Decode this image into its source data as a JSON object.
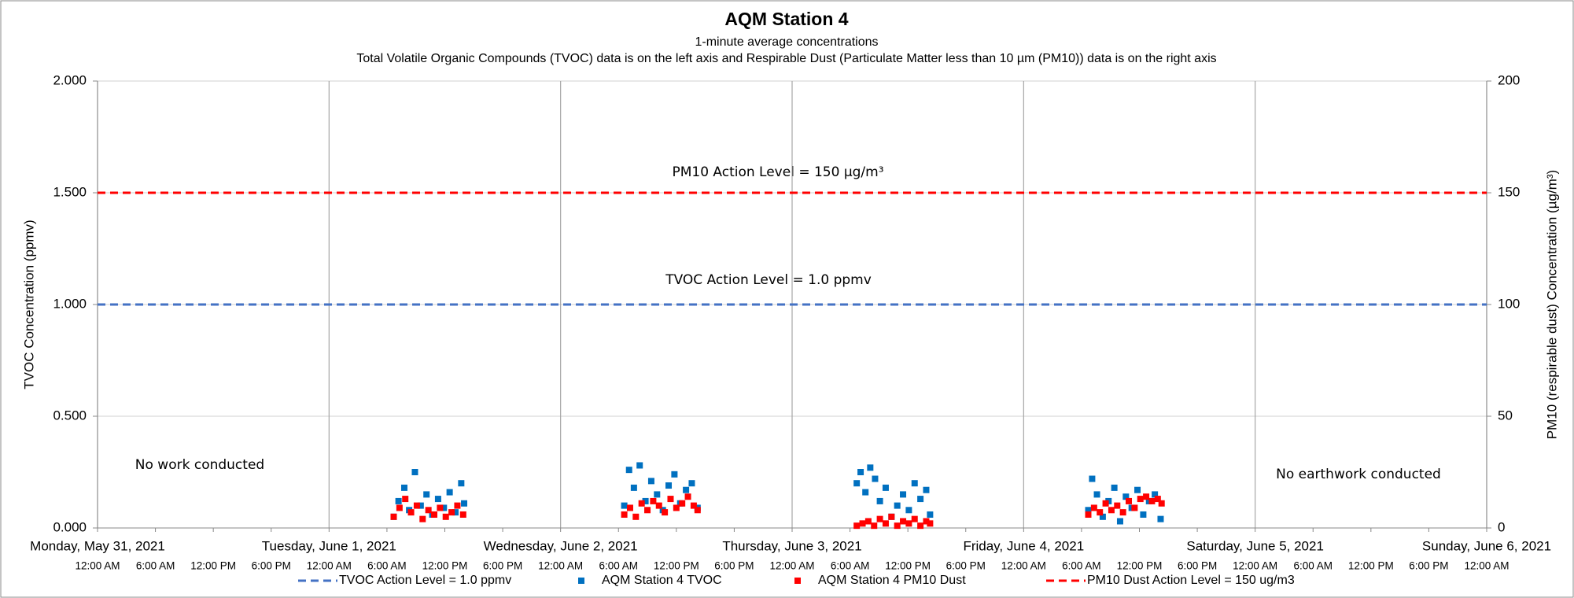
{
  "chart_data": {
    "type": "scatter",
    "title": "AQM Station 4",
    "subtitle": "1-minute average concentrations",
    "subtitle2": "Total Volatile Organic Compounds (TVOC) data is on the left axis and Respirable Dust (Particulate Matter less than 10 µm (PM10)) data is on the right axis",
    "ylabel": "TVOC Concentration (ppmv)",
    "y2label": "PM10 (respirable dust) Concentration (µg/m³)",
    "xlim": [
      0,
      144
    ],
    "xticks": [
      {
        "value": 0,
        "label": "12:00 AM"
      },
      {
        "value": 6,
        "label": "6:00 AM"
      },
      {
        "value": 12,
        "label": "12:00 PM"
      },
      {
        "value": 18,
        "label": "6:00 PM"
      },
      {
        "value": 24,
        "label": "12:00 AM"
      },
      {
        "value": 30,
        "label": "6:00 AM"
      },
      {
        "value": 36,
        "label": "12:00 PM"
      },
      {
        "value": 42,
        "label": "6:00 PM"
      },
      {
        "value": 48,
        "label": "12:00 AM"
      },
      {
        "value": 54,
        "label": "6:00 AM"
      },
      {
        "value": 60,
        "label": "12:00 PM"
      },
      {
        "value": 66,
        "label": "6:00 PM"
      },
      {
        "value": 72,
        "label": "12:00 AM"
      },
      {
        "value": 78,
        "label": "6:00 AM"
      },
      {
        "value": 84,
        "label": "12:00 PM"
      },
      {
        "value": 90,
        "label": "6:00 PM"
      },
      {
        "value": 96,
        "label": "12:00 AM"
      },
      {
        "value": 102,
        "label": "6:00 AM"
      },
      {
        "value": 108,
        "label": "12:00 PM"
      },
      {
        "value": 114,
        "label": "6:00 PM"
      },
      {
        "value": 120,
        "label": "12:00 AM"
      },
      {
        "value": 126,
        "label": "6:00 AM"
      },
      {
        "value": 132,
        "label": "12:00 PM"
      },
      {
        "value": 138,
        "label": "6:00 PM"
      },
      {
        "value": 144,
        "label": "12:00 AM"
      }
    ],
    "xticks_major": [
      {
        "value": 0,
        "label": "Monday, May 31, 2021"
      },
      {
        "value": 24,
        "label": "Tuesday, June 1, 2021"
      },
      {
        "value": 48,
        "label": "Wednesday, June 2, 2021"
      },
      {
        "value": 72,
        "label": "Thursday, June 3, 2021"
      },
      {
        "value": 96,
        "label": "Friday, June 4, 2021"
      },
      {
        "value": 120,
        "label": "Saturday, June 5, 2021"
      },
      {
        "value": 144,
        "label": "Sunday, June 6, 2021"
      }
    ],
    "ylim": [
      0,
      2
    ],
    "yticks": [
      {
        "value": 0,
        "label": "0.000"
      },
      {
        "value": 0.5,
        "label": "0.500"
      },
      {
        "value": 1,
        "label": "1.000"
      },
      {
        "value": 1.5,
        "label": "1.500"
      },
      {
        "value": 2,
        "label": "2.000"
      }
    ],
    "y2lim": [
      0,
      200
    ],
    "y2ticks": [
      0,
      50,
      100,
      150,
      200
    ],
    "grid": true,
    "legend": "bottom",
    "series": [
      {
        "name": "TVOC Action Level = 1.0 ppmv",
        "type": "hline",
        "color": "#4472c4",
        "value": 1.0
      },
      {
        "name": "AQM Station 4 TVOC",
        "type": "scatter",
        "color": "#0070c0",
        "x": [
          30.7,
          31.2,
          31.8,
          32.3,
          32.9,
          33.5,
          34.1,
          34.7,
          35.3,
          35.9,
          36.5,
          37.1,
          37.7,
          38.0,
          54.6,
          55.1,
          55.6,
          56.2,
          56.8,
          57.4,
          58.0,
          58.6,
          59.2,
          59.8,
          60.4,
          61.0,
          61.6,
          62.2,
          78.7,
          79.1,
          79.6,
          80.1,
          80.6,
          81.1,
          81.7,
          82.3,
          82.9,
          83.5,
          84.1,
          84.7,
          85.3,
          85.9,
          86.3,
          102.7,
          103.1,
          103.6,
          104.2,
          104.8,
          105.4,
          106.0,
          106.6,
          107.2,
          107.8,
          108.4,
          109.0,
          109.6,
          110.2
        ],
        "values": [
          0.05,
          0.12,
          0.18,
          0.08,
          0.25,
          0.1,
          0.15,
          0.06,
          0.13,
          0.09,
          0.16,
          0.07,
          0.2,
          0.11,
          0.1,
          0.26,
          0.18,
          0.28,
          0.12,
          0.21,
          0.15,
          0.08,
          0.19,
          0.24,
          0.11,
          0.17,
          0.2,
          0.09,
          0.2,
          0.25,
          0.16,
          0.27,
          0.22,
          0.12,
          0.18,
          0.05,
          0.1,
          0.15,
          0.08,
          0.2,
          0.13,
          0.17,
          0.06,
          0.08,
          0.22,
          0.15,
          0.05,
          0.12,
          0.18,
          0.03,
          0.14,
          0.09,
          0.17,
          0.06,
          0.12,
          0.15,
          0.04
        ]
      },
      {
        "name": "AQM Station 4 PM10 Dust",
        "type": "scatter",
        "color": "#ff0000",
        "axis": "y2",
        "x": [
          30.7,
          31.3,
          31.9,
          32.5,
          33.1,
          33.7,
          34.3,
          34.9,
          35.5,
          36.1,
          36.7,
          37.3,
          37.9,
          54.6,
          55.2,
          55.8,
          56.4,
          57.0,
          57.6,
          58.2,
          58.8,
          59.4,
          60.0,
          60.6,
          61.2,
          61.8,
          62.2,
          78.7,
          79.3,
          79.9,
          80.5,
          81.1,
          81.7,
          82.3,
          82.9,
          83.5,
          84.1,
          84.7,
          85.3,
          85.9,
          86.3,
          102.7,
          103.3,
          103.9,
          104.5,
          105.1,
          105.7,
          106.3,
          106.9,
          107.5,
          108.1,
          108.7,
          109.3,
          109.9,
          110.3
        ],
        "values": [
          5,
          9,
          13,
          7,
          10,
          4,
          8,
          6,
          9,
          5,
          7,
          10,
          6,
          6,
          9,
          5,
          11,
          8,
          12,
          10,
          7,
          13,
          9,
          11,
          14,
          10,
          8,
          1,
          2,
          3,
          1,
          4,
          2,
          5,
          1,
          3,
          2,
          4,
          1,
          3,
          2,
          6,
          9,
          7,
          11,
          8,
          10,
          7,
          12,
          9,
          13,
          14,
          12,
          13,
          11
        ]
      },
      {
        "name": "PM10 Dust Action Level = 150 ug/m3",
        "type": "hline",
        "color": "#ff0000",
        "axis": "y2",
        "value": 150
      }
    ],
    "annotations": [
      "PM10 Action Level = 150 µg/m³",
      "TVOC Action Level = 1.0 ppmv",
      "No work conducted",
      "No  earthwork conducted"
    ]
  }
}
